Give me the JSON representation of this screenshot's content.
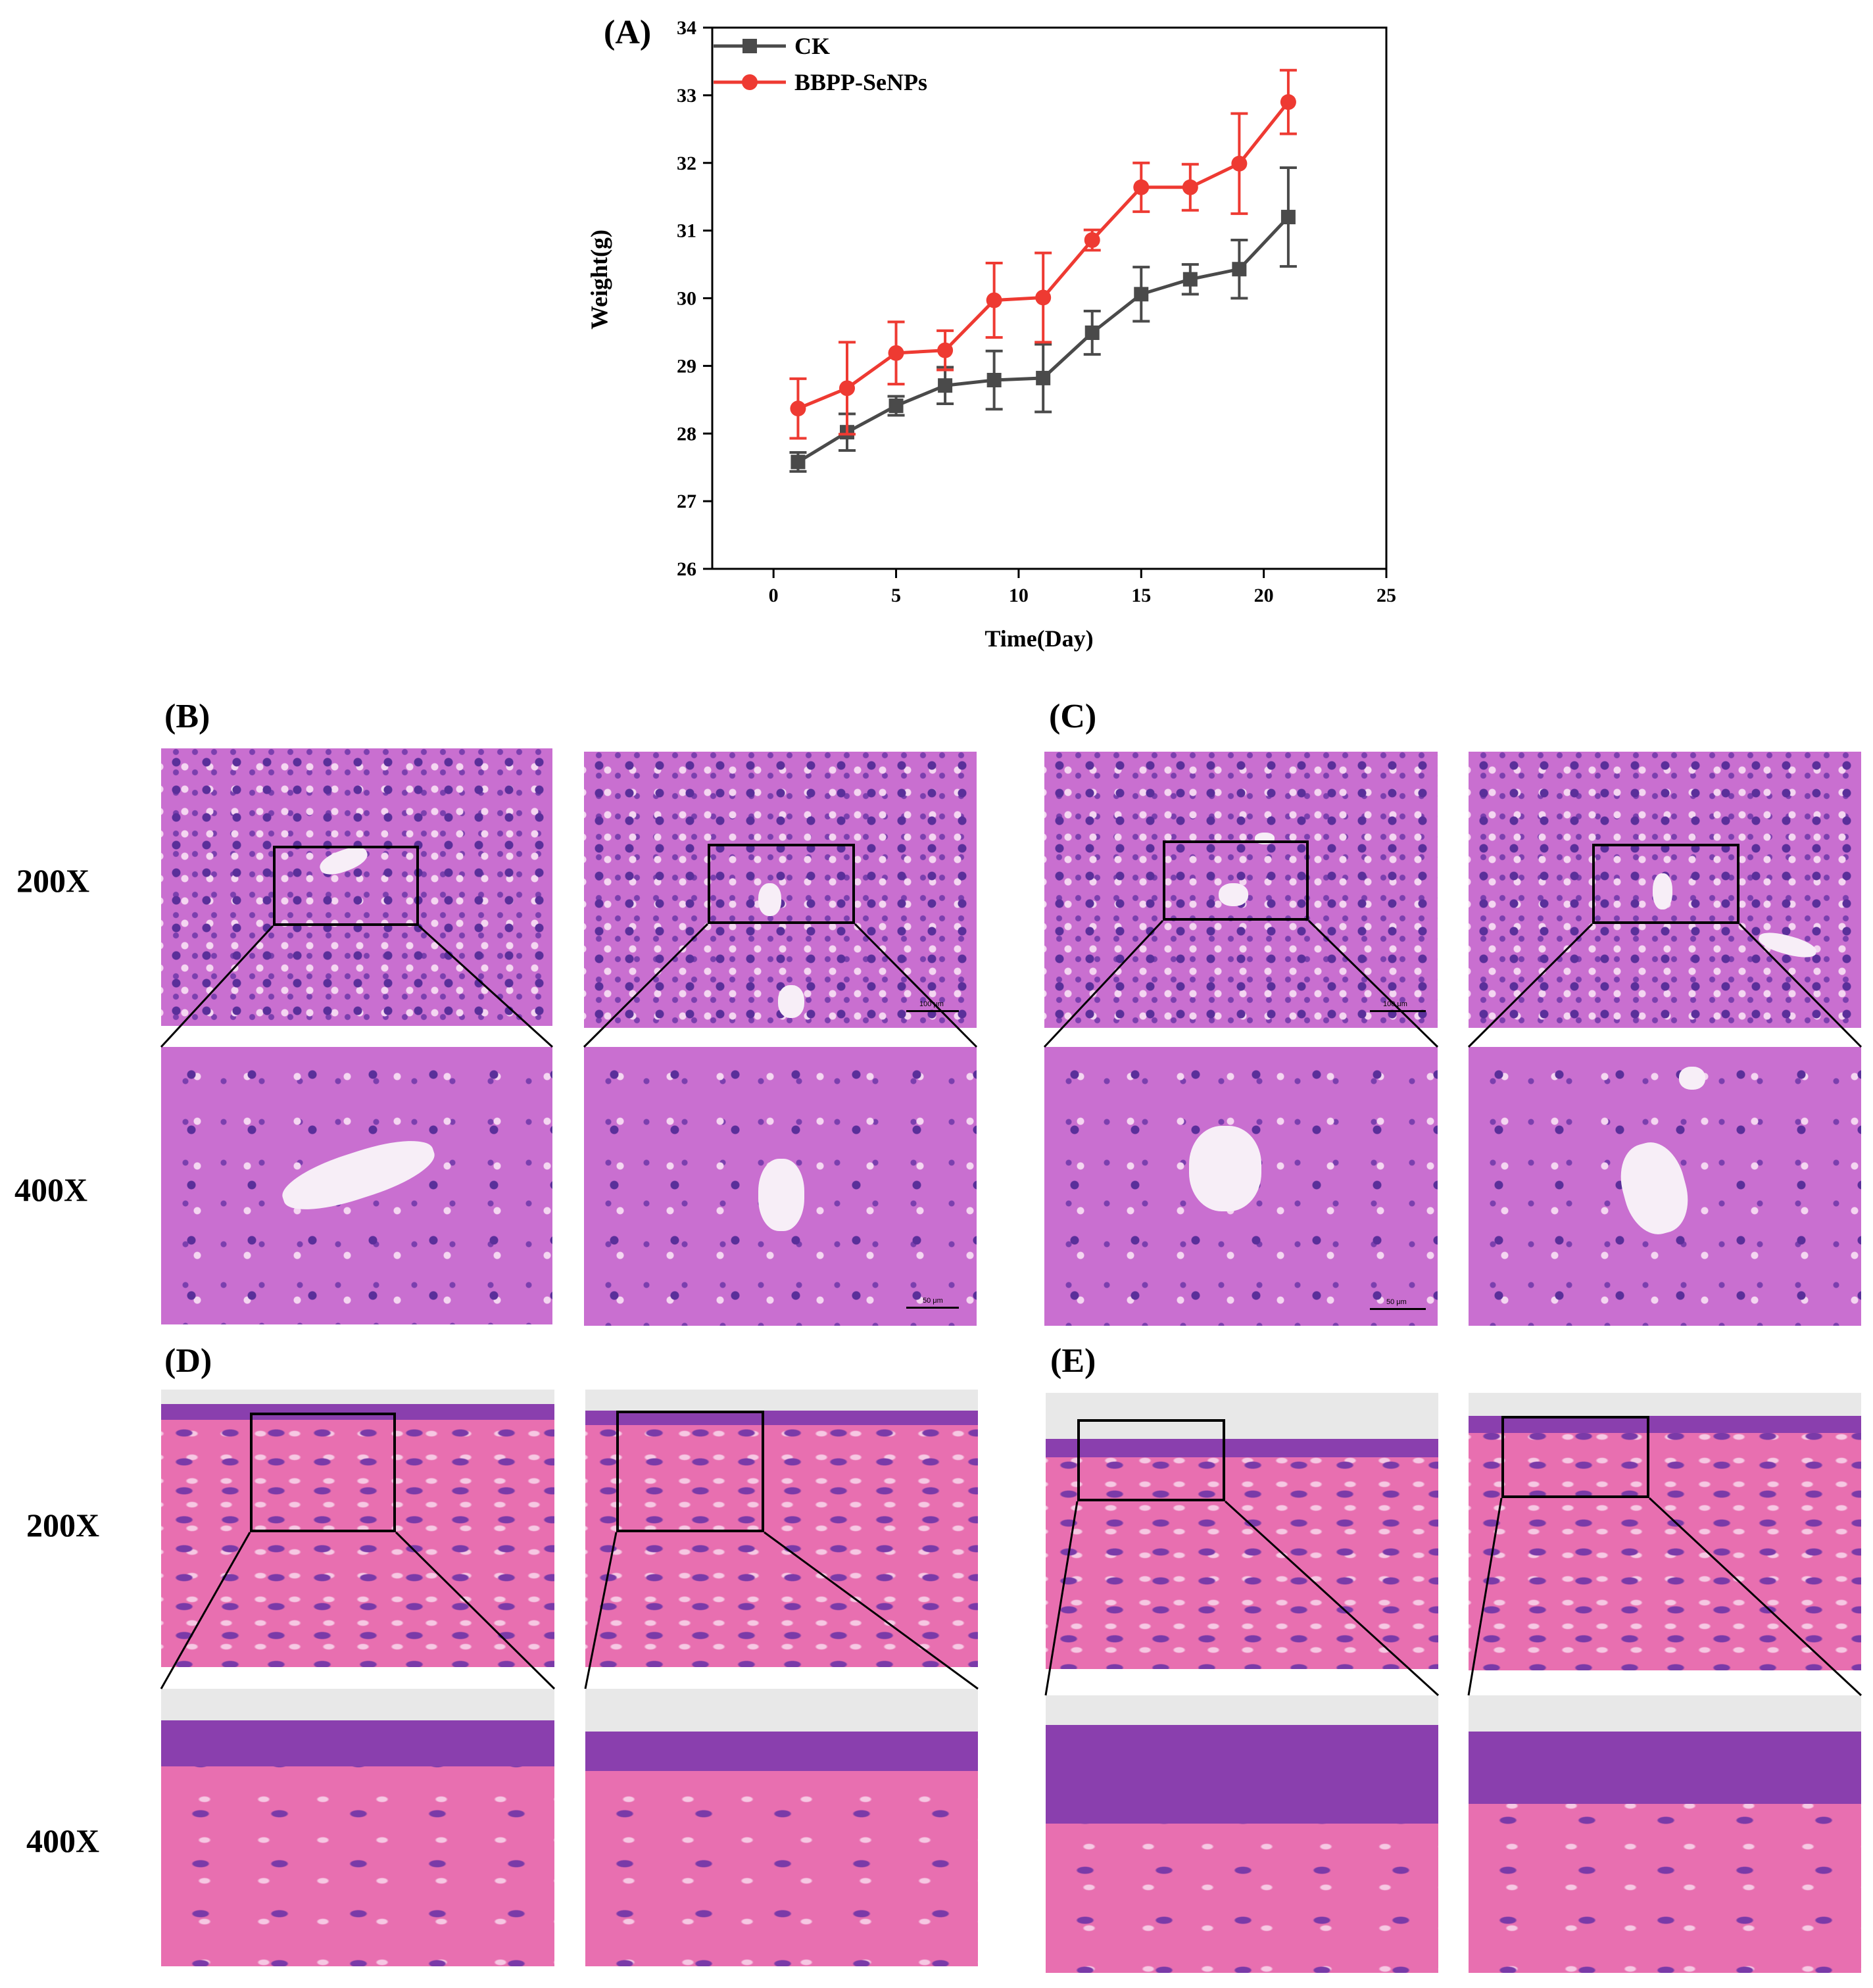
{
  "panels": {
    "A": "(A)",
    "B": "(B)",
    "C": "(C)",
    "D": "(D)",
    "E": "(E)"
  },
  "magnification": {
    "low": "200X",
    "high": "400X"
  },
  "scale_bars": {
    "low": "100 μm",
    "high": "50 μm"
  },
  "chart_data": {
    "type": "line",
    "title": "",
    "xlabel": "Time(Day)",
    "ylabel": "Weight(g)",
    "xlim": [
      -2.5,
      25
    ],
    "ylim": [
      26,
      34
    ],
    "xticks": [
      0,
      5,
      10,
      15,
      20,
      25
    ],
    "yticks": [
      26,
      27,
      28,
      29,
      30,
      31,
      32,
      33,
      34
    ],
    "legend_position": "top-left",
    "grid": false,
    "x": [
      1,
      3,
      5,
      7,
      9,
      11,
      13,
      15,
      17,
      19,
      21
    ],
    "series": [
      {
        "name": "CK",
        "color": "#4a4a4a",
        "marker": "square",
        "values": [
          27.58,
          28.02,
          28.41,
          28.71,
          28.79,
          28.82,
          29.49,
          30.06,
          30.28,
          30.43,
          31.2
        ],
        "errors": [
          0.14,
          0.27,
          0.14,
          0.27,
          0.43,
          0.5,
          0.32,
          0.4,
          0.22,
          0.43,
          0.73
        ]
      },
      {
        "name": "BBPP-SeNPs",
        "color": "#ee3a32",
        "marker": "circle",
        "values": [
          28.37,
          28.67,
          29.19,
          29.23,
          29.97,
          30.01,
          30.86,
          31.64,
          31.64,
          31.99,
          32.9
        ],
        "errors": [
          0.44,
          0.68,
          0.46,
          0.29,
          0.55,
          0.66,
          0.15,
          0.36,
          0.34,
          0.74,
          0.47
        ]
      }
    ]
  }
}
